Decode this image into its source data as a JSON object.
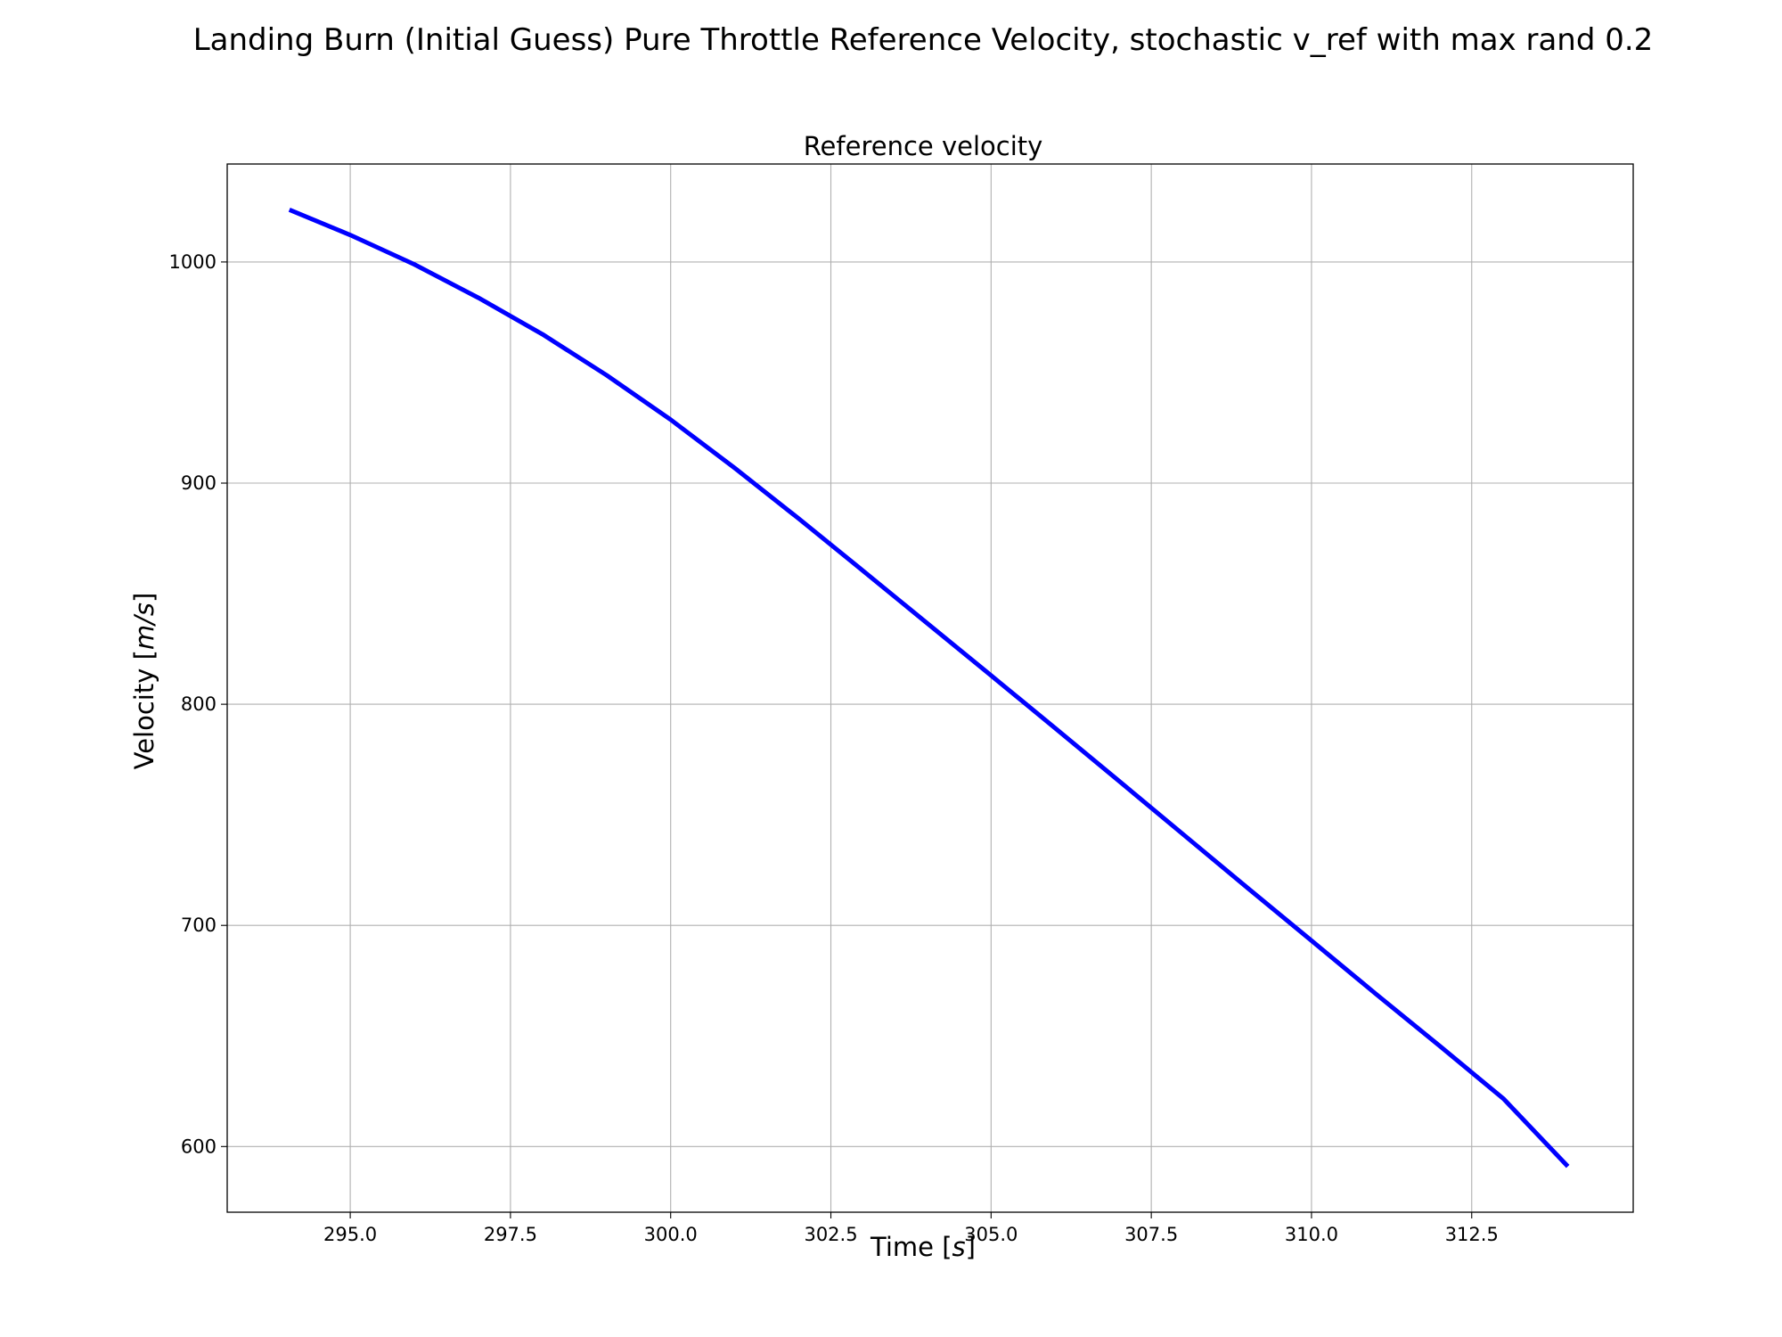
{
  "chart_data": {
    "type": "line",
    "suptitle": "Landing Burn (Initial Guess) Pure Throttle Reference Velocity, stochastic v_ref with max rand 0.2",
    "title": "Reference velocity",
    "xlabel": "Time [",
    "xlabel_unit": "s",
    "xlabel_close": "]",
    "ylabel": "Velocity [",
    "ylabel_unit": "m/s",
    "ylabel_close": "]",
    "xlim": [
      293.08,
      315.02
    ],
    "ylim": [
      570.3,
      1044.3
    ],
    "grid": true,
    "xticks": [
      295.0,
      297.5,
      300.0,
      302.5,
      305.0,
      307.5,
      310.0,
      312.5
    ],
    "xtick_labels": [
      "295.0",
      "297.5",
      "300.0",
      "302.5",
      "305.0",
      "307.5",
      "310.0",
      "312.5"
    ],
    "yticks": [
      600,
      700,
      800,
      900,
      1000
    ],
    "ytick_labels": [
      "600",
      "700",
      "800",
      "900",
      "1000"
    ],
    "series": [
      {
        "color": "#0000ff",
        "x": [
          294.05,
          295.0,
          296.0,
          297.0,
          298.0,
          299.0,
          300.0,
          301.0,
          302.0,
          303.0,
          304.0,
          305.0,
          306.0,
          307.0,
          308.0,
          309.0,
          310.0,
          311.0,
          312.0,
          313.0,
          314.0
        ],
        "y": [
          1023.6,
          1012.2,
          998.9,
          983.8,
          967.3,
          948.8,
          928.7,
          906.8,
          883.9,
          860.4,
          836.7,
          813.0,
          789.2,
          765.2,
          741.1,
          717.0,
          693.1,
          669.1,
          645.5,
          621.5,
          591.0
        ]
      }
    ]
  }
}
